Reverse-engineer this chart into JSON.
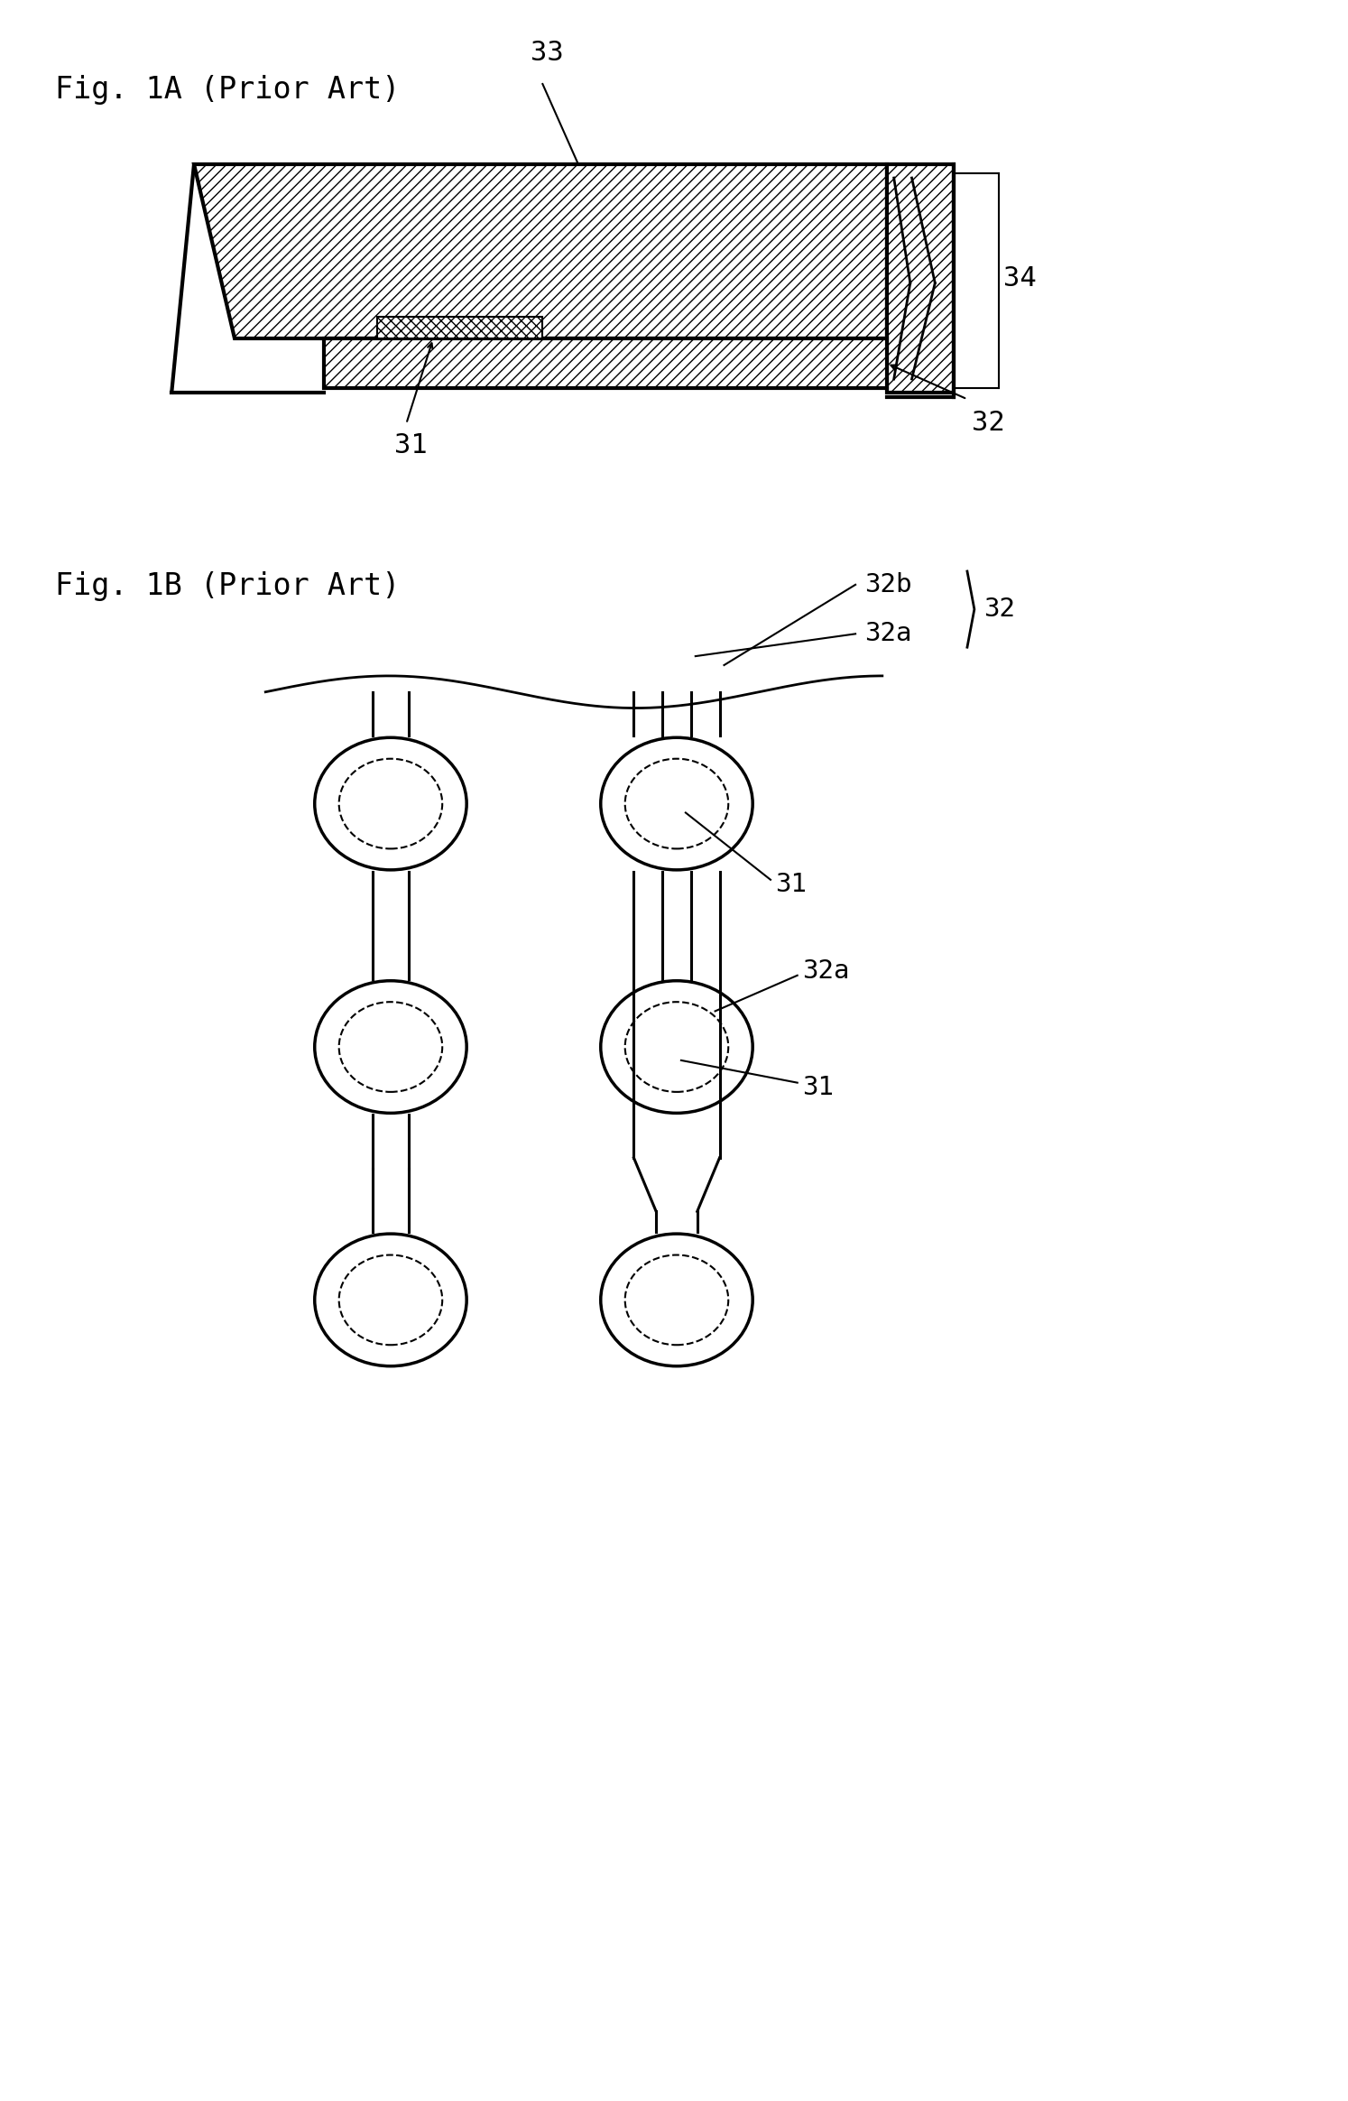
{
  "fig_title_1a": "Fig. 1A (Prior Art)",
  "fig_title_1b": "Fig. 1B (Prior Art)",
  "bg_color": "#ffffff",
  "line_color": "#000000",
  "label_33": "33",
  "label_34": "34",
  "label_32": "32",
  "label_31_a": "31",
  "label_32b": "32b",
  "label_32a": "32a",
  "label_31_b1": "31",
  "label_31_b2": "31",
  "label_32a_b": "32a"
}
